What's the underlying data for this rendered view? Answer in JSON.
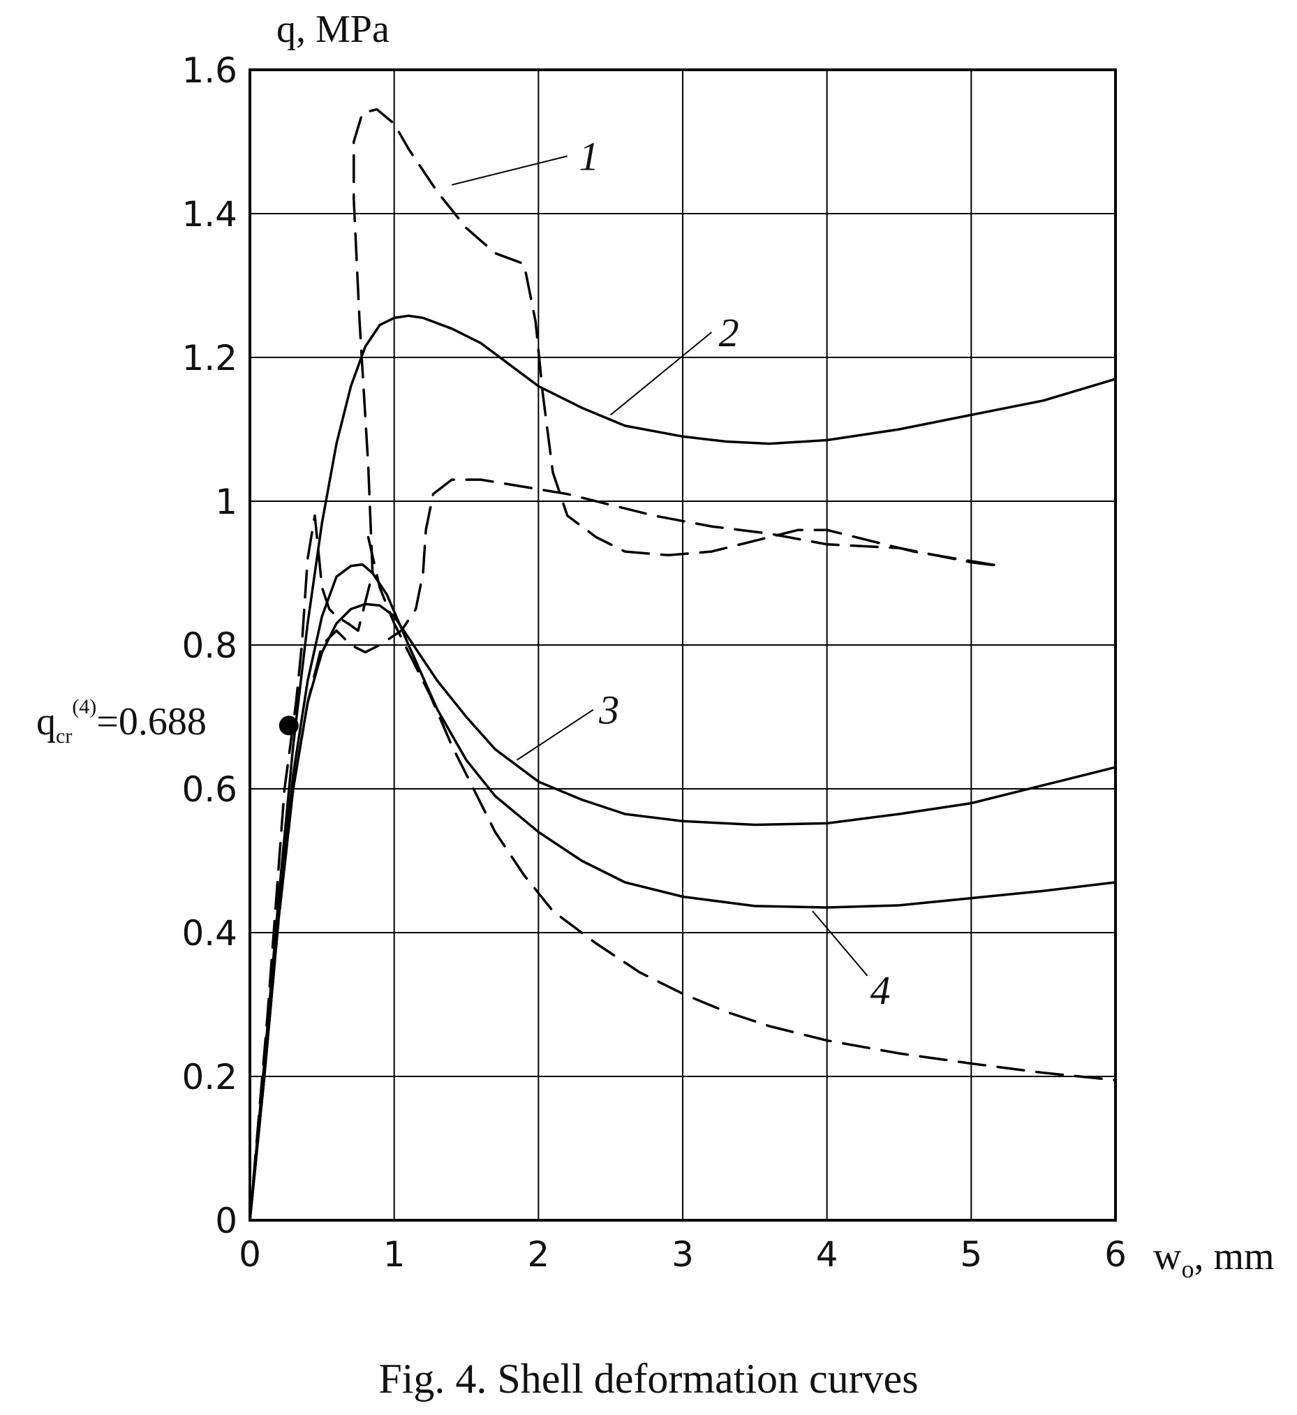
{
  "chart_data": {
    "type": "line",
    "ylabel": "q, MPa",
    "xlabel_main": "w",
    "xlabel_sub": "o",
    "xlabel_unit": ", mm",
    "xlim": [
      0,
      6
    ],
    "ylim": [
      0,
      1.6
    ],
    "x_ticks": [
      "0",
      "1",
      "2",
      "3",
      "4",
      "5",
      "6"
    ],
    "y_ticks": [
      "0",
      "0.2",
      "0.4",
      "0.6",
      "0.8",
      "1",
      "1.2",
      "1.4",
      "1.6"
    ],
    "x_tick_values": [
      0,
      1,
      2,
      3,
      4,
      5,
      6
    ],
    "y_tick_values": [
      0,
      0.2,
      0.4,
      0.6,
      0.8,
      1.0,
      1.2,
      1.4,
      1.6
    ],
    "grid": true,
    "curve_labels": [
      {
        "text": "1",
        "series": "curve-1"
      },
      {
        "text": "2",
        "series": "curve-2"
      },
      {
        "text": "3",
        "series": "curve-3"
      },
      {
        "text": "4",
        "series": "curve-4"
      }
    ],
    "critical_point": {
      "x": 0.27,
      "y": 0.688,
      "label_main": "q",
      "label_sub": "cr",
      "label_sup": "(4)",
      "label_value": "=0.688"
    },
    "series": [
      {
        "id": "curve-1",
        "style": "dashed",
        "points": [
          [
            0,
            0
          ],
          [
            0.12,
            0.28
          ],
          [
            0.24,
            0.6
          ],
          [
            0.32,
            0.72
          ],
          [
            0.36,
            0.8
          ],
          [
            0.4,
            0.92
          ],
          [
            0.45,
            0.98
          ],
          [
            0.5,
            0.88
          ],
          [
            0.55,
            0.85
          ],
          [
            0.6,
            0.84
          ],
          [
            0.68,
            0.83
          ],
          [
            0.75,
            0.82
          ],
          [
            0.85,
            0.9
          ],
          [
            0.82,
            1.05
          ],
          [
            0.76,
            1.25
          ],
          [
            0.72,
            1.42
          ],
          [
            0.72,
            1.5
          ],
          [
            0.78,
            1.54
          ],
          [
            0.88,
            1.545
          ],
          [
            1.0,
            1.525
          ],
          [
            1.1,
            1.49
          ],
          [
            1.3,
            1.43
          ],
          [
            1.5,
            1.38
          ],
          [
            1.7,
            1.345
          ],
          [
            1.9,
            1.33
          ],
          [
            1.98,
            1.25
          ],
          [
            2.03,
            1.15
          ],
          [
            2.1,
            1.04
          ],
          [
            2.2,
            0.98
          ],
          [
            2.4,
            0.95
          ],
          [
            2.6,
            0.93
          ],
          [
            2.9,
            0.925
          ],
          [
            3.2,
            0.93
          ],
          [
            3.5,
            0.945
          ],
          [
            3.8,
            0.96
          ],
          [
            4.0,
            0.96
          ],
          [
            4.3,
            0.945
          ],
          [
            4.6,
            0.93
          ],
          [
            5.2,
            0.91
          ]
        ]
      },
      {
        "id": "curve-2",
        "style": "solid",
        "points": [
          [
            0,
            0
          ],
          [
            0.1,
            0.22
          ],
          [
            0.2,
            0.45
          ],
          [
            0.3,
            0.66
          ],
          [
            0.4,
            0.83
          ],
          [
            0.5,
            0.97
          ],
          [
            0.6,
            1.08
          ],
          [
            0.7,
            1.16
          ],
          [
            0.8,
            1.215
          ],
          [
            0.9,
            1.245
          ],
          [
            1.0,
            1.255
          ],
          [
            1.1,
            1.258
          ],
          [
            1.2,
            1.255
          ],
          [
            1.4,
            1.24
          ],
          [
            1.6,
            1.22
          ],
          [
            1.8,
            1.19
          ],
          [
            2.0,
            1.16
          ],
          [
            2.3,
            1.13
          ],
          [
            2.6,
            1.105
          ],
          [
            3.0,
            1.09
          ],
          [
            3.3,
            1.083
          ],
          [
            3.6,
            1.08
          ],
          [
            4.0,
            1.085
          ],
          [
            4.5,
            1.1
          ],
          [
            5.0,
            1.12
          ],
          [
            5.5,
            1.14
          ],
          [
            6.0,
            1.17
          ]
        ]
      },
      {
        "id": "curve-3",
        "style": "solid",
        "points": [
          [
            0,
            0
          ],
          [
            0.1,
            0.2
          ],
          [
            0.2,
            0.42
          ],
          [
            0.3,
            0.6
          ],
          [
            0.4,
            0.72
          ],
          [
            0.5,
            0.79
          ],
          [
            0.6,
            0.83
          ],
          [
            0.7,
            0.85
          ],
          [
            0.8,
            0.857
          ],
          [
            0.9,
            0.855
          ],
          [
            1.0,
            0.84
          ],
          [
            1.1,
            0.81
          ],
          [
            1.3,
            0.75
          ],
          [
            1.5,
            0.7
          ],
          [
            1.7,
            0.655
          ],
          [
            2.0,
            0.61
          ],
          [
            2.3,
            0.585
          ],
          [
            2.6,
            0.565
          ],
          [
            3.0,
            0.555
          ],
          [
            3.5,
            0.55
          ],
          [
            4.0,
            0.552
          ],
          [
            4.5,
            0.565
          ],
          [
            5.0,
            0.58
          ],
          [
            5.5,
            0.605
          ],
          [
            6.0,
            0.63
          ]
        ]
      },
      {
        "id": "curve-4",
        "style": "solid",
        "points": [
          [
            0,
            0
          ],
          [
            0.1,
            0.2
          ],
          [
            0.2,
            0.43
          ],
          [
            0.3,
            0.62
          ],
          [
            0.4,
            0.75
          ],
          [
            0.5,
            0.84
          ],
          [
            0.6,
            0.895
          ],
          [
            0.7,
            0.91
          ],
          [
            0.78,
            0.912
          ],
          [
            0.85,
            0.9
          ],
          [
            0.95,
            0.87
          ],
          [
            1.1,
            0.8
          ],
          [
            1.3,
            0.71
          ],
          [
            1.5,
            0.64
          ],
          [
            1.7,
            0.59
          ],
          [
            2.0,
            0.54
          ],
          [
            2.3,
            0.5
          ],
          [
            2.6,
            0.47
          ],
          [
            3.0,
            0.45
          ],
          [
            3.5,
            0.437
          ],
          [
            4.0,
            0.435
          ],
          [
            4.5,
            0.438
          ],
          [
            5.0,
            0.448
          ],
          [
            5.5,
            0.458
          ],
          [
            6.0,
            0.47
          ]
        ]
      },
      {
        "id": "curve-5",
        "style": "dashed",
        "points": [
          [
            0,
            0
          ],
          [
            0.1,
            0.2
          ],
          [
            0.2,
            0.42
          ],
          [
            0.3,
            0.6
          ],
          [
            0.4,
            0.72
          ],
          [
            0.5,
            0.8
          ],
          [
            0.6,
            0.82
          ],
          [
            0.7,
            0.8
          ],
          [
            0.8,
            0.79
          ],
          [
            0.9,
            0.8
          ],
          [
            1.05,
            0.82
          ],
          [
            1.15,
            0.85
          ],
          [
            1.2,
            0.9
          ],
          [
            1.22,
            0.96
          ],
          [
            1.27,
            1.01
          ],
          [
            1.4,
            1.03
          ],
          [
            1.6,
            1.03
          ],
          [
            1.9,
            1.02
          ],
          [
            2.2,
            1.01
          ],
          [
            2.5,
            0.995
          ],
          [
            2.8,
            0.98
          ],
          [
            3.2,
            0.965
          ],
          [
            3.6,
            0.955
          ],
          [
            4.0,
            0.94
          ],
          [
            4.5,
            0.935
          ],
          [
            5.0,
            0.915
          ],
          [
            5.2,
            0.91
          ]
        ]
      },
      {
        "id": "curve-6",
        "style": "dashed",
        "points": [
          [
            0.82,
            0.95
          ],
          [
            0.9,
            0.88
          ],
          [
            1.0,
            0.83
          ],
          [
            1.1,
            0.79
          ],
          [
            1.25,
            0.73
          ],
          [
            1.4,
            0.66
          ],
          [
            1.55,
            0.6
          ],
          [
            1.7,
            0.54
          ],
          [
            1.9,
            0.48
          ],
          [
            2.1,
            0.43
          ],
          [
            2.4,
            0.385
          ],
          [
            2.7,
            0.345
          ],
          [
            3.0,
            0.315
          ],
          [
            3.3,
            0.29
          ],
          [
            3.6,
            0.27
          ],
          [
            4.0,
            0.25
          ],
          [
            4.5,
            0.232
          ],
          [
            5.0,
            0.218
          ],
          [
            5.5,
            0.205
          ],
          [
            6.0,
            0.195
          ]
        ]
      }
    ]
  },
  "caption": "Fig. 4. Shell deformation curves"
}
